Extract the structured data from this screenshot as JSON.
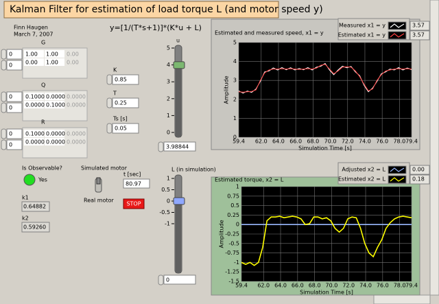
{
  "header": {
    "title": "Kalman Filter for estimation of load torque L (and motor speed y)"
  },
  "author": {
    "name": "Finn Haugen",
    "date": "March 7, 2007"
  },
  "equation": "y=[1/(T*s+1)]*(K*u + L)",
  "matrices": [
    {
      "label": "G",
      "index": [
        "0",
        "0"
      ],
      "rows": [
        [
          "1.00",
          "1.00",
          "0.00"
        ],
        [
          "0.00",
          "1.00",
          "0.00"
        ]
      ]
    },
    {
      "label": "Q",
      "index": [
        "0",
        "0"
      ],
      "rows": [
        [
          "0.1000",
          "0.0000",
          "0.0000"
        ],
        [
          "0.0000",
          "0.1000",
          "0.0000"
        ]
      ]
    },
    {
      "label": "R",
      "index": [
        "0",
        "0"
      ],
      "rows": [
        [
          "0.1000",
          "0.0000",
          "0.0000"
        ],
        [
          "0.0000",
          "0.0000",
          "0.0000"
        ]
      ]
    }
  ],
  "parameters": [
    {
      "label": "K",
      "value": "0.85"
    },
    {
      "label": "T",
      "value": "0.25"
    },
    {
      "label": "Ts [s]",
      "value": "0.05"
    }
  ],
  "u_slider": {
    "label": "u",
    "value": 3.98844,
    "lim": [
      0,
      5
    ],
    "ticks": [
      0,
      1,
      2,
      3,
      4,
      5
    ]
  },
  "observability": {
    "label": "Is Observable?",
    "state": "Yes"
  },
  "gains": [
    {
      "label": "k1",
      "value": "0.64882"
    },
    {
      "label": "k2",
      "value": "0.59260"
    }
  ],
  "motor_switch": {
    "label": "Simulated motor",
    "option": "Real motor"
  },
  "time": {
    "label": "t [sec]",
    "value": "80.97"
  },
  "stop_button": "STOP",
  "L_slider": {
    "label": "L (in simulation)",
    "value": 0,
    "lim": [
      -1,
      1
    ],
    "ticks": [
      1,
      0.5,
      0,
      -0.5,
      -1
    ]
  },
  "chart_data": [
    {
      "type": "line",
      "title": "Estimated and measured speed, x1 = y",
      "xlabel": "Simulation Time [s]",
      "ylabel": "Amplitude",
      "x": [
        59.4,
        59.9,
        60.4,
        60.9,
        61.4,
        61.9,
        62.4,
        62.9,
        63.4,
        63.9,
        64.4,
        64.9,
        65.4,
        65.9,
        66.4,
        66.9,
        67.4,
        67.9,
        68.4,
        68.9,
        69.4,
        69.9,
        70.4,
        70.9,
        71.4,
        71.9,
        72.4,
        72.9,
        73.4,
        73.9,
        74.4,
        74.9,
        75.4,
        75.9,
        76.4,
        76.9,
        77.4,
        77.9,
        78.4,
        78.9,
        79.4
      ],
      "series": [
        {
          "name": "Measured x1 = y",
          "color": "#ffffff",
          "legend_value": "3.57",
          "values": [
            2.45,
            2.33,
            2.44,
            2.37,
            2.55,
            2.95,
            3.45,
            3.5,
            3.66,
            3.55,
            3.68,
            3.56,
            3.67,
            3.55,
            3.63,
            3.56,
            3.68,
            3.55,
            3.7,
            3.75,
            3.9,
            3.55,
            3.3,
            3.55,
            3.75,
            3.67,
            3.74,
            3.45,
            3.25,
            2.75,
            2.4,
            2.6,
            2.95,
            3.35,
            3.45,
            3.6,
            3.55,
            3.68,
            3.55,
            3.66,
            3.57
          ]
        },
        {
          "name": "Estimated x1 = y",
          "color": "#ff4040",
          "legend_value": "3.57",
          "values": [
            2.4,
            2.38,
            2.4,
            2.42,
            2.5,
            3.0,
            3.4,
            3.55,
            3.6,
            3.6,
            3.62,
            3.6,
            3.62,
            3.6,
            3.58,
            3.6,
            3.62,
            3.6,
            3.65,
            3.8,
            3.85,
            3.6,
            3.35,
            3.5,
            3.7,
            3.72,
            3.7,
            3.5,
            3.2,
            2.8,
            2.45,
            2.55,
            3.0,
            3.3,
            3.5,
            3.55,
            3.6,
            3.62,
            3.6,
            3.62,
            3.6
          ]
        }
      ],
      "xlim": [
        59.4,
        79.4
      ],
      "ylim": [
        0,
        5
      ],
      "xticks": [
        59.4,
        {
          "value": 62,
          "label": "62.0"
        },
        {
          "value": 64,
          "label": "64.0"
        },
        {
          "value": 66,
          "label": "66.0"
        },
        {
          "value": 68,
          "label": "68.0"
        },
        {
          "value": 70,
          "label": "70.0"
        },
        {
          "value": 72,
          "label": "72.0"
        },
        {
          "value": 74,
          "label": "74.0"
        },
        {
          "value": 76,
          "label": "76.0"
        },
        {
          "value": 78,
          "label": "78.0"
        },
        79.4
      ],
      "yticks": [
        0,
        1,
        2,
        3,
        4,
        5
      ],
      "grid": true
    },
    {
      "type": "line",
      "title": "Estimated torque, x2 = L",
      "xlabel": "Simulation Time [s]",
      "ylabel": "Amplitude",
      "x": [
        59.4,
        59.9,
        60.4,
        60.9,
        61.4,
        61.9,
        62.4,
        62.9,
        63.4,
        63.9,
        64.4,
        64.9,
        65.4,
        65.9,
        66.4,
        66.9,
        67.4,
        67.9,
        68.4,
        68.9,
        69.4,
        69.9,
        70.4,
        70.9,
        71.4,
        71.9,
        72.4,
        72.9,
        73.4,
        73.9,
        74.4,
        74.9,
        75.4,
        75.9,
        76.4,
        76.9,
        77.4,
        77.9,
        78.4,
        78.9,
        79.4
      ],
      "series": [
        {
          "name": "Adjusted x2 = L",
          "color": "#9ab8ff",
          "legend_value": "0.00",
          "values": [
            0,
            0,
            0,
            0,
            0,
            0,
            0,
            0,
            0,
            0,
            0,
            0,
            0,
            0,
            0,
            0,
            0,
            0,
            0,
            0,
            0,
            0,
            0,
            0,
            0,
            0,
            0,
            0,
            0,
            0,
            0,
            0,
            0,
            0,
            0,
            0,
            0,
            0,
            0,
            0,
            0
          ]
        },
        {
          "name": "Estimated x2 = L",
          "color": "#ffff00",
          "legend_value": "0.18",
          "values": [
            -1.0,
            -1.05,
            -1.0,
            -1.08,
            -1.0,
            -0.6,
            0.1,
            0.2,
            0.2,
            0.22,
            0.18,
            0.2,
            0.22,
            0.2,
            0.15,
            0.0,
            0.02,
            0.2,
            0.2,
            0.15,
            0.18,
            0.1,
            -0.1,
            -0.2,
            -0.1,
            0.15,
            0.2,
            0.18,
            -0.1,
            -0.5,
            -0.75,
            -0.85,
            -0.6,
            -0.4,
            -0.1,
            0.05,
            0.15,
            0.2,
            0.22,
            0.2,
            0.18
          ]
        }
      ],
      "xlim": [
        59.4,
        79.4
      ],
      "ylim": [
        -1.5,
        1
      ],
      "xticks": [
        59.4,
        {
          "value": 62,
          "label": "62.0"
        },
        {
          "value": 64,
          "label": "64.0"
        },
        {
          "value": 66,
          "label": "66.0"
        },
        {
          "value": 68,
          "label": "68.0"
        },
        {
          "value": 70,
          "label": "70.0"
        },
        {
          "value": 72,
          "label": "72.0"
        },
        {
          "value": 74,
          "label": "74.0"
        },
        {
          "value": 76,
          "label": "76.0"
        },
        {
          "value": 78,
          "label": "78.0"
        },
        79.4
      ],
      "yticks": [
        1,
        0.75,
        0.5,
        0.25,
        0,
        -0.25,
        -0.5,
        -0.75,
        -1,
        -1.25,
        -1.5
      ],
      "grid": true
    }
  ]
}
